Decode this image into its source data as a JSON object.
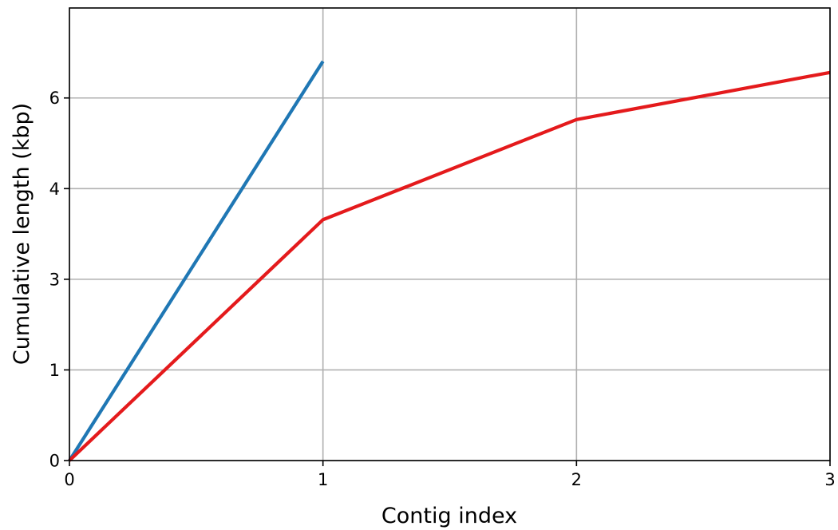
{
  "chart_data": {
    "type": "line",
    "title": "",
    "xlabel": "Contig index",
    "ylabel": "Cumulative length (kbp)",
    "xlim": [
      0,
      3
    ],
    "ylim": [
      0,
      6.915
    ],
    "grid": true,
    "x_ticks": [
      {
        "value": 0,
        "label": "0"
      },
      {
        "value": 1,
        "label": "1"
      },
      {
        "value": 2,
        "label": "2"
      },
      {
        "value": 3,
        "label": "3"
      }
    ],
    "y_ticks": [
      {
        "value": 0,
        "label": "0"
      },
      {
        "value": 1.385,
        "label": "1"
      },
      {
        "value": 2.77,
        "label": "3"
      },
      {
        "value": 4.155,
        "label": "4"
      },
      {
        "value": 5.54,
        "label": "6"
      }
    ],
    "series": [
      {
        "color": "#1f77b4",
        "x": [
          0,
          1
        ],
        "y": [
          0,
          6.1
        ]
      },
      {
        "color": "#e41a1c",
        "x": [
          0,
          1,
          2,
          3
        ],
        "y": [
          0,
          3.68,
          5.21,
          5.93
        ]
      }
    ]
  }
}
